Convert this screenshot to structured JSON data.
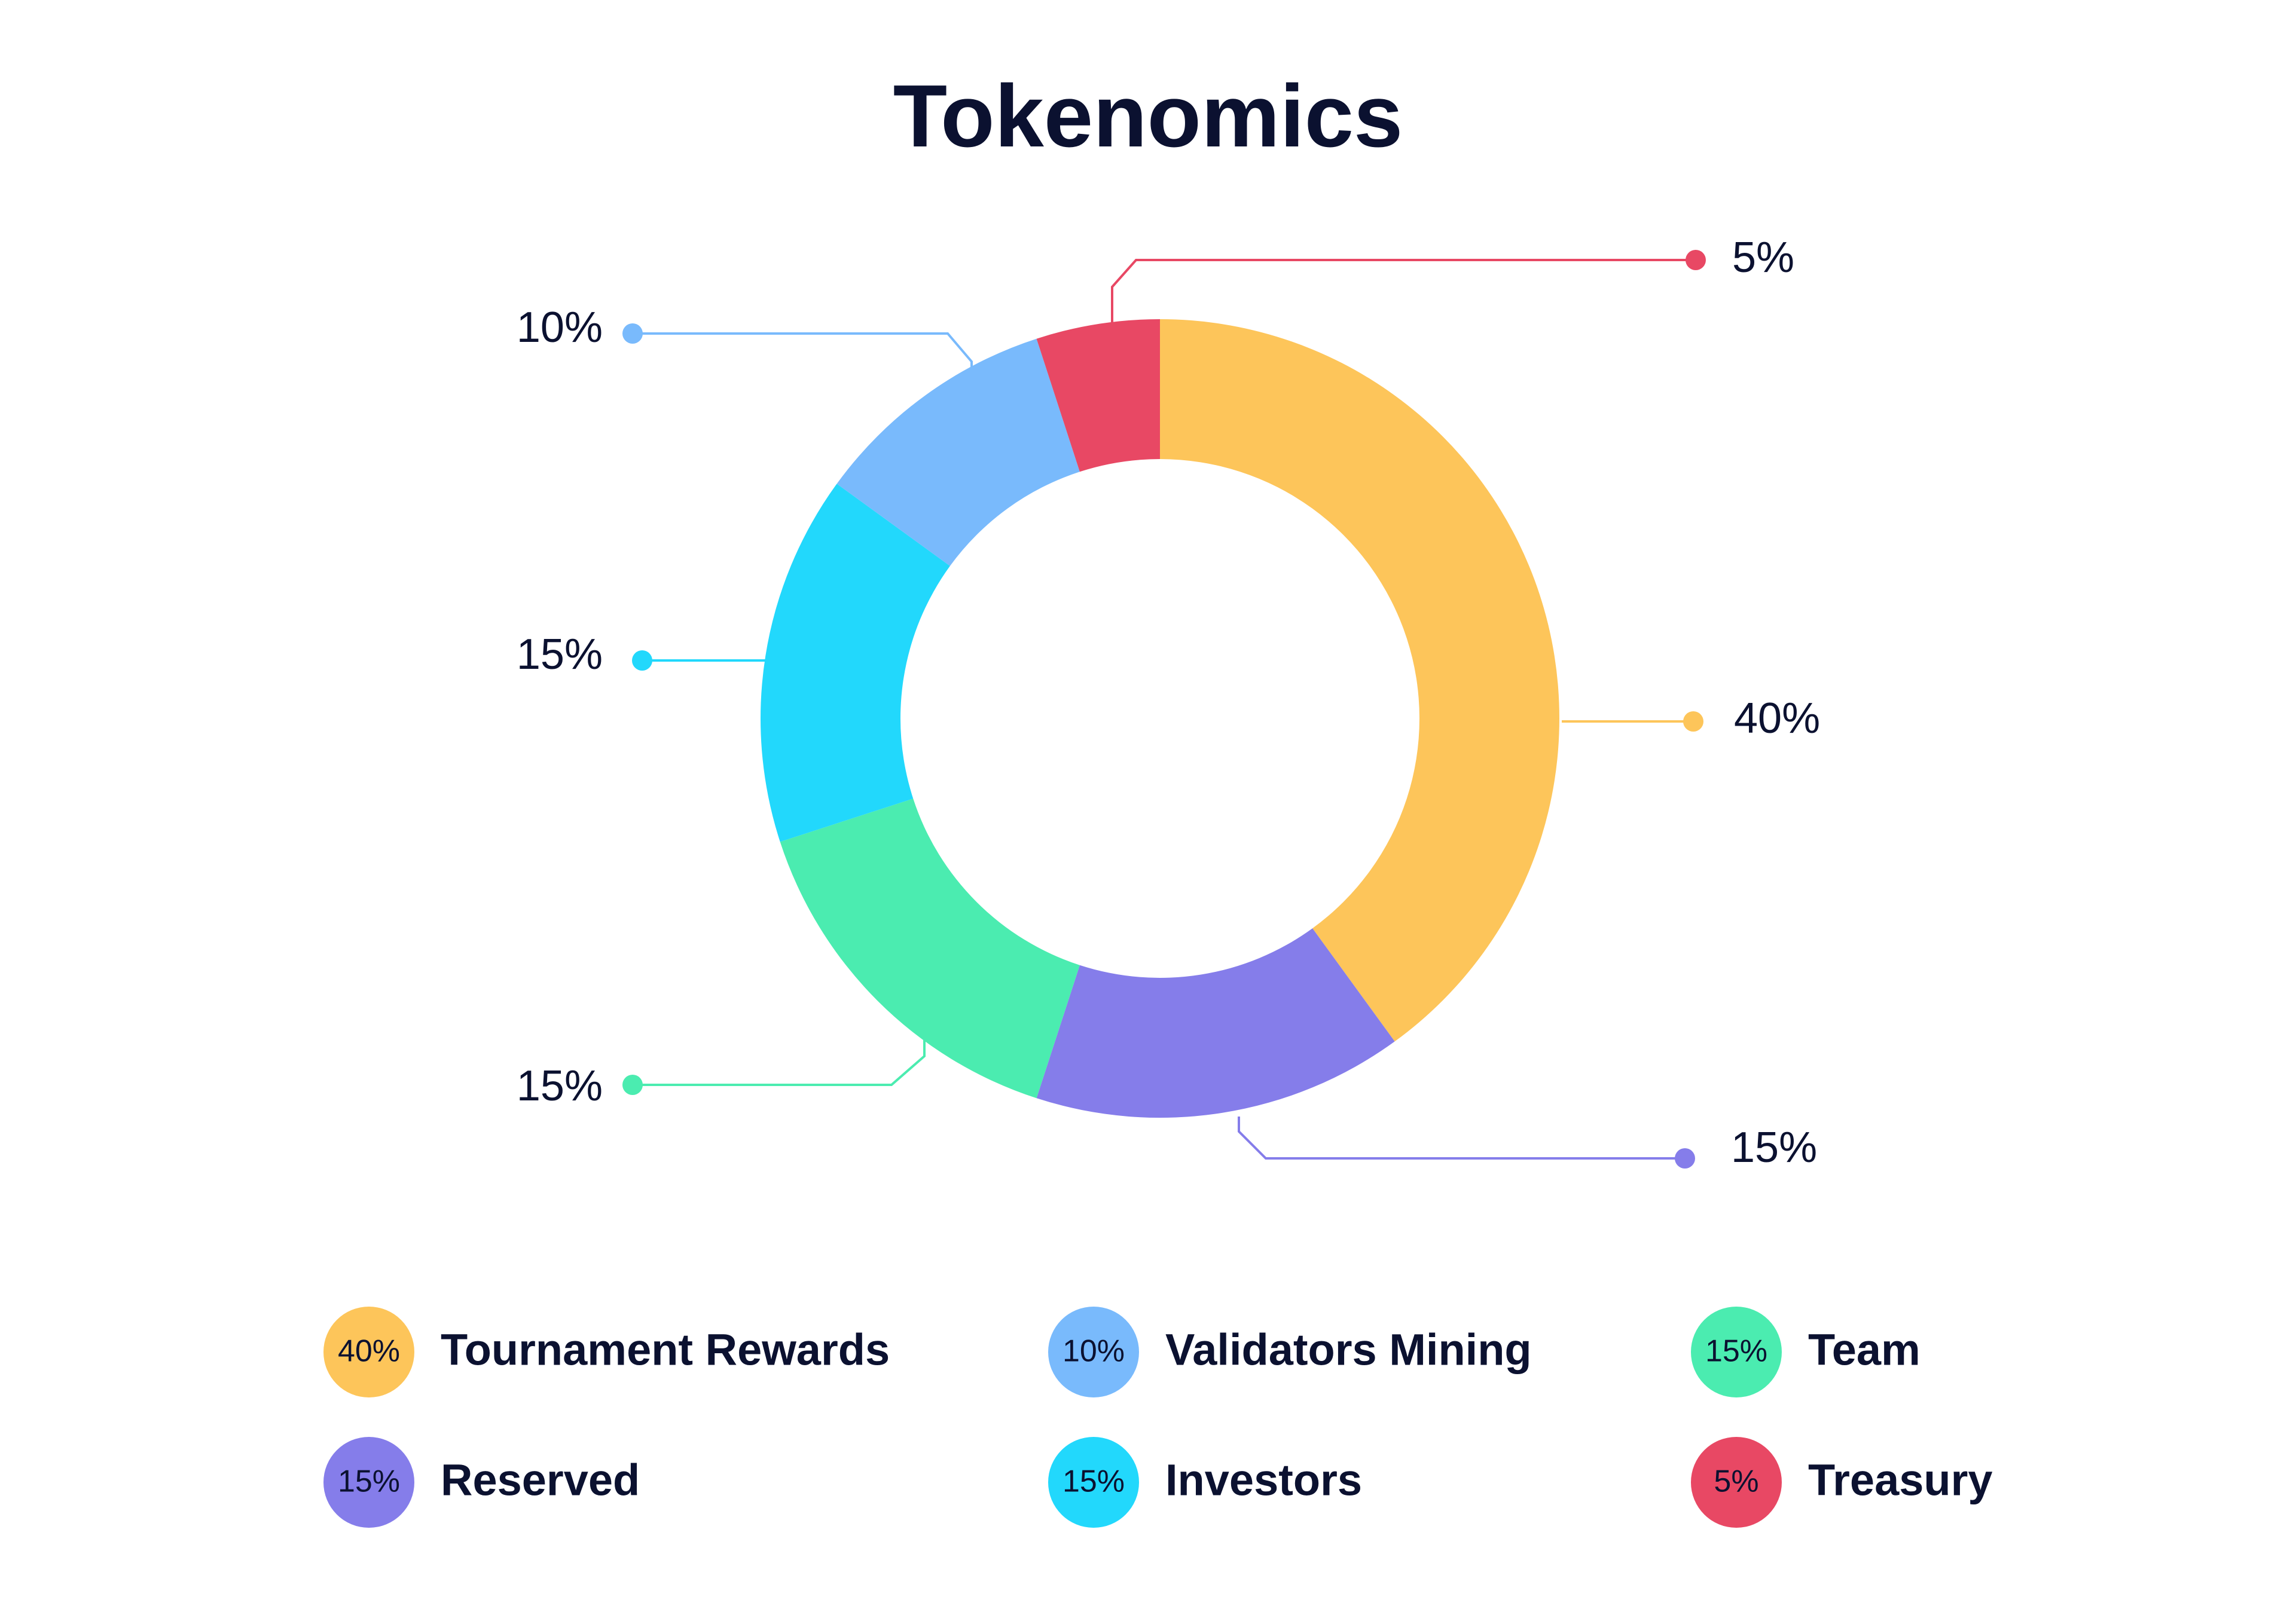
{
  "chart_data": {
    "type": "pie",
    "title": "Tokenomics",
    "donut": true,
    "start_angle_deg": 0,
    "direction": "clockwise",
    "slices": [
      {
        "name": "Tournament Rewards",
        "value": 40,
        "label": "40%",
        "color": "#FDC55A"
      },
      {
        "name": "Reserved",
        "value": 15,
        "label": "15%",
        "color": "#857DEA"
      },
      {
        "name": "Team",
        "value": 15,
        "label": "15%",
        "color": "#4BECB0"
      },
      {
        "name": "Investors",
        "value": 15,
        "label": "15%",
        "color": "#22D8FC"
      },
      {
        "name": "Validators Mining",
        "value": 10,
        "label": "10%",
        "color": "#79BAFC"
      },
      {
        "name": "Treasury",
        "value": 5,
        "label": "5%",
        "color": "#E84864"
      }
    ],
    "legend": {
      "placement": "bottom",
      "order": [
        "Tournament Rewards",
        "Validators Mining",
        "Team",
        "Reserved",
        "Investors",
        "Treasury"
      ]
    },
    "grid": false
  }
}
